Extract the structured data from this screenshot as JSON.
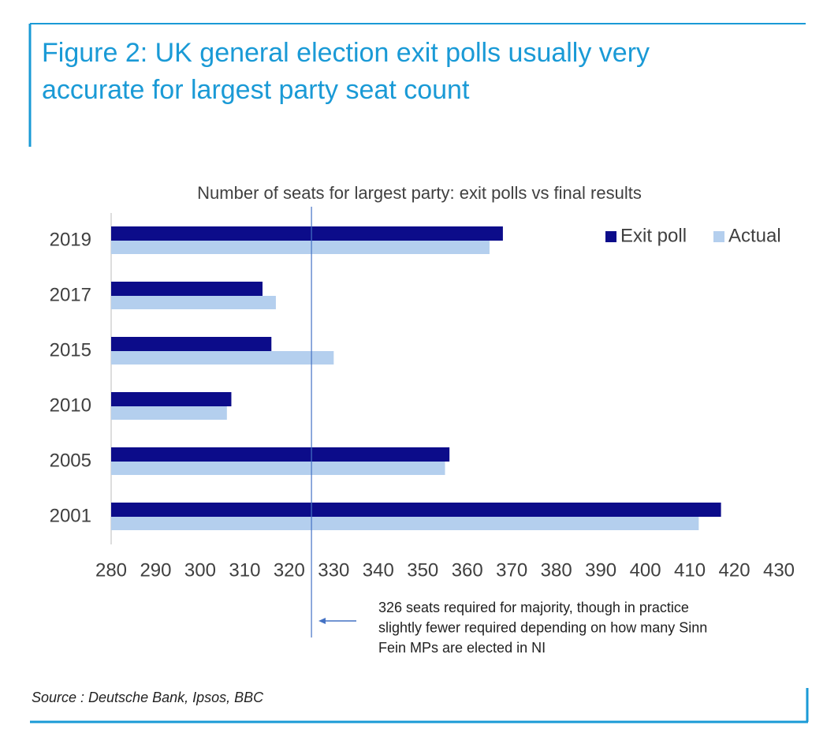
{
  "chart_data": {
    "type": "hbar",
    "title": [
      "Figure 2: UK general election exit polls usually very",
      "accurate for largest party seat count"
    ],
    "subtitle": "Number of seats for largest party: exit polls vs final results",
    "categories": [
      "2019",
      "2017",
      "2015",
      "2010",
      "2005",
      "2001"
    ],
    "series": [
      {
        "name": "Exit poll",
        "color": "#0c0c8a",
        "values": [
          368,
          314,
          316,
          307,
          356,
          417
        ]
      },
      {
        "name": "Actual",
        "color": "#b4cfee",
        "values": [
          365,
          317,
          330,
          306,
          355,
          412
        ]
      }
    ],
    "xlim": [
      280,
      430
    ],
    "xticks": [
      280,
      290,
      300,
      310,
      320,
      330,
      340,
      350,
      360,
      370,
      380,
      390,
      400,
      410,
      420,
      430
    ],
    "majority_line": 325,
    "majority_color": "#4472c4",
    "annotation": [
      "326 seats required for majority, though in practice",
      "slightly fewer required depending on how many Sinn",
      "Fein MPs are elected in NI"
    ],
    "legend": "top-right",
    "source": "Source : Deutsche Bank, Ipsos, BBC"
  }
}
